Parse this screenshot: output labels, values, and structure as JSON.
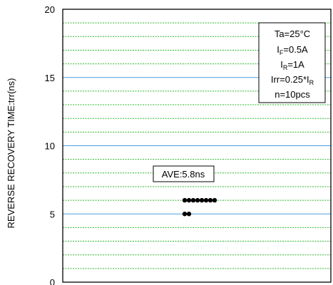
{
  "chart_data": {
    "type": "scatter",
    "title": "",
    "xlabel": "",
    "ylabel": "REVERSE RECOVERY TIME:trr(ns)",
    "ylim": [
      0,
      20
    ],
    "y_major_ticks": [
      0,
      5,
      10,
      15,
      20
    ],
    "y_minor_step": 1,
    "x_ticks": [],
    "grid": true,
    "colors": {
      "major_grid": "#4a9fe0",
      "minor_grid": "#2eb82e",
      "marker": "#000000"
    },
    "series": [
      {
        "values": [
          6,
          6,
          6,
          6,
          6,
          6,
          6,
          6,
          5,
          5
        ]
      }
    ],
    "annotation": "AVE:5.8ns",
    "conditions": {
      "ta": "Ta=25°C",
      "if_main": "I",
      "if_sub": "F",
      "if_rest": "=0.5A",
      "ir_main": "I",
      "ir_sub": "R",
      "ir_rest": "=1A",
      "irr_main": "Irr=0.25*I",
      "irr_sub": "R",
      "n": "n=10pcs"
    }
  }
}
